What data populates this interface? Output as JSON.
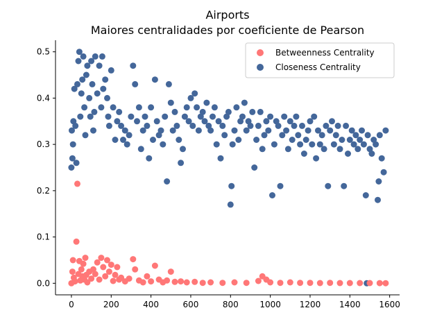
{
  "chart_data": {
    "type": "scatter",
    "title": "Airports",
    "subtitle": "Maiores centralidades por coeficiente de Pearson",
    "xlabel": "",
    "ylabel": "",
    "xlim": [
      -80,
      1650
    ],
    "ylim": [
      -0.025,
      0.525
    ],
    "x_ticks": [
      0,
      200,
      400,
      600,
      800,
      1000,
      1200,
      1400,
      1600
    ],
    "y_ticks": [
      0.0,
      0.1,
      0.2,
      0.3,
      0.4,
      0.5
    ],
    "y_tick_labels": [
      "0.0",
      "0.1",
      "0.2",
      "0.3",
      "0.4",
      "0.5"
    ],
    "grid": false,
    "legend_position": "top-right",
    "series": [
      {
        "name": "Betweenness Centrality",
        "color": "#ff7777",
        "points": [
          [
            0,
            0.0
          ],
          [
            5,
            0.025
          ],
          [
            8,
            0.05
          ],
          [
            12,
            0.012
          ],
          [
            18,
            0.004
          ],
          [
            25,
            0.09
          ],
          [
            30,
            0.215
          ],
          [
            35,
            0.02
          ],
          [
            40,
            0.048
          ],
          [
            45,
            0.006
          ],
          [
            50,
            0.03
          ],
          [
            55,
            0.015
          ],
          [
            60,
            0.042
          ],
          [
            65,
            0.008
          ],
          [
            70,
            0.055
          ],
          [
            75,
            0.018
          ],
          [
            80,
            0.002
          ],
          [
            90,
            0.025
          ],
          [
            100,
            0.01
          ],
          [
            110,
            0.03
          ],
          [
            120,
            0.02
          ],
          [
            130,
            0.045
          ],
          [
            140,
            0.008
          ],
          [
            150,
            0.055
          ],
          [
            160,
            0.035
          ],
          [
            170,
            0.015
          ],
          [
            180,
            0.05
          ],
          [
            190,
            0.025
          ],
          [
            200,
            0.04
          ],
          [
            210,
            0.005
          ],
          [
            220,
            0.018
          ],
          [
            230,
            0.035
          ],
          [
            240,
            0.008
          ],
          [
            250,
            0.012
          ],
          [
            270,
            0.004
          ],
          [
            290,
            0.01
          ],
          [
            310,
            0.052
          ],
          [
            320,
            0.03
          ],
          [
            340,
            0.006
          ],
          [
            360,
            0.002
          ],
          [
            380,
            0.015
          ],
          [
            400,
            0.004
          ],
          [
            420,
            0.038
          ],
          [
            440,
            0.008
          ],
          [
            460,
            0.002
          ],
          [
            480,
            0.006
          ],
          [
            500,
            0.025
          ],
          [
            520,
            0.003
          ],
          [
            550,
            0.004
          ],
          [
            580,
            0.002
          ],
          [
            620,
            0.003
          ],
          [
            660,
            0.001
          ],
          [
            700,
            0.002
          ],
          [
            760,
            0.001
          ],
          [
            820,
            0.002
          ],
          [
            880,
            0.001
          ],
          [
            940,
            0.005
          ],
          [
            960,
            0.015
          ],
          [
            980,
            0.008
          ],
          [
            1000,
            0.002
          ],
          [
            1050,
            0.001
          ],
          [
            1100,
            0.002
          ],
          [
            1150,
            0.001
          ],
          [
            1200,
            0.001
          ],
          [
            1250,
            0.0005
          ],
          [
            1300,
            0.001
          ],
          [
            1350,
            0.0005
          ],
          [
            1400,
            0.0005
          ],
          [
            1450,
            0.0005
          ],
          [
            1500,
            0.0005
          ],
          [
            1550,
            0.0003
          ],
          [
            1580,
            0.0002
          ]
        ]
      },
      {
        "name": "Closeness Centrality",
        "color": "#44679a",
        "points": [
          [
            0,
            0.25
          ],
          [
            2,
            0.33
          ],
          [
            5,
            0.27
          ],
          [
            8,
            0.3
          ],
          [
            10,
            0.35
          ],
          [
            15,
            0.42
          ],
          [
            20,
            0.34
          ],
          [
            25,
            0.26
          ],
          [
            30,
            0.43
          ],
          [
            35,
            0.48
          ],
          [
            40,
            0.5
          ],
          [
            45,
            0.36
          ],
          [
            50,
            0.41
          ],
          [
            55,
            0.44
          ],
          [
            60,
            0.49
          ],
          [
            65,
            0.38
          ],
          [
            70,
            0.32
          ],
          [
            75,
            0.45
          ],
          [
            80,
            0.47
          ],
          [
            90,
            0.4
          ],
          [
            95,
            0.36
          ],
          [
            100,
            0.48
          ],
          [
            105,
            0.43
          ],
          [
            110,
            0.33
          ],
          [
            115,
            0.37
          ],
          [
            120,
            0.49
          ],
          [
            130,
            0.41
          ],
          [
            140,
            0.47
          ],
          [
            150,
            0.38
          ],
          [
            155,
            0.49
          ],
          [
            160,
            0.42
          ],
          [
            170,
            0.44
          ],
          [
            180,
            0.4
          ],
          [
            185,
            0.36
          ],
          [
            190,
            0.34
          ],
          [
            200,
            0.46
          ],
          [
            210,
            0.38
          ],
          [
            220,
            0.31
          ],
          [
            230,
            0.35
          ],
          [
            240,
            0.37
          ],
          [
            250,
            0.34
          ],
          [
            260,
            0.31
          ],
          [
            270,
            0.33
          ],
          [
            280,
            0.3
          ],
          [
            290,
            0.32
          ],
          [
            300,
            0.36
          ],
          [
            310,
            0.47
          ],
          [
            320,
            0.43
          ],
          [
            330,
            0.35
          ],
          [
            340,
            0.38
          ],
          [
            350,
            0.29
          ],
          [
            360,
            0.33
          ],
          [
            370,
            0.36
          ],
          [
            380,
            0.34
          ],
          [
            390,
            0.27
          ],
          [
            400,
            0.38
          ],
          [
            410,
            0.31
          ],
          [
            420,
            0.44
          ],
          [
            430,
            0.35
          ],
          [
            440,
            0.32
          ],
          [
            450,
            0.33
          ],
          [
            460,
            0.3
          ],
          [
            470,
            0.36
          ],
          [
            480,
            0.22
          ],
          [
            490,
            0.43
          ],
          [
            500,
            0.39
          ],
          [
            510,
            0.33
          ],
          [
            520,
            0.37
          ],
          [
            530,
            0.34
          ],
          [
            540,
            0.31
          ],
          [
            550,
            0.26
          ],
          [
            560,
            0.29
          ],
          [
            570,
            0.36
          ],
          [
            580,
            0.38
          ],
          [
            590,
            0.35
          ],
          [
            600,
            0.4
          ],
          [
            610,
            0.34
          ],
          [
            620,
            0.41
          ],
          [
            630,
            0.38
          ],
          [
            640,
            0.33
          ],
          [
            650,
            0.36
          ],
          [
            660,
            0.37
          ],
          [
            670,
            0.35
          ],
          [
            680,
            0.39
          ],
          [
            690,
            0.34
          ],
          [
            700,
            0.33
          ],
          [
            710,
            0.36
          ],
          [
            720,
            0.38
          ],
          [
            730,
            0.3
          ],
          [
            740,
            0.35
          ],
          [
            750,
            0.27
          ],
          [
            760,
            0.34
          ],
          [
            770,
            0.32
          ],
          [
            780,
            0.36
          ],
          [
            790,
            0.37
          ],
          [
            800,
            0.17
          ],
          [
            805,
            0.21
          ],
          [
            810,
            0.3
          ],
          [
            820,
            0.33
          ],
          [
            830,
            0.38
          ],
          [
            840,
            0.31
          ],
          [
            850,
            0.35
          ],
          [
            860,
            0.36
          ],
          [
            870,
            0.39
          ],
          [
            880,
            0.33
          ],
          [
            890,
            0.35
          ],
          [
            900,
            0.34
          ],
          [
            910,
            0.37
          ],
          [
            920,
            0.25
          ],
          [
            930,
            0.31
          ],
          [
            940,
            0.34
          ],
          [
            950,
            0.37
          ],
          [
            960,
            0.29
          ],
          [
            970,
            0.32
          ],
          [
            980,
            0.35
          ],
          [
            990,
            0.33
          ],
          [
            1000,
            0.36
          ],
          [
            1010,
            0.19
          ],
          [
            1020,
            0.3
          ],
          [
            1030,
            0.35
          ],
          [
            1040,
            0.34
          ],
          [
            1050,
            0.21
          ],
          [
            1060,
            0.32
          ],
          [
            1070,
            0.36
          ],
          [
            1080,
            0.33
          ],
          [
            1090,
            0.29
          ],
          [
            1100,
            0.35
          ],
          [
            1110,
            0.31
          ],
          [
            1120,
            0.34
          ],
          [
            1130,
            0.36
          ],
          [
            1140,
            0.32
          ],
          [
            1150,
            0.3
          ],
          [
            1160,
            0.34
          ],
          [
            1170,
            0.28
          ],
          [
            1180,
            0.31
          ],
          [
            1190,
            0.33
          ],
          [
            1200,
            0.35
          ],
          [
            1210,
            0.3
          ],
          [
            1220,
            0.36
          ],
          [
            1230,
            0.27
          ],
          [
            1240,
            0.33
          ],
          [
            1250,
            0.3
          ],
          [
            1260,
            0.32
          ],
          [
            1270,
            0.29
          ],
          [
            1280,
            0.34
          ],
          [
            1290,
            0.21
          ],
          [
            1300,
            0.33
          ],
          [
            1310,
            0.35
          ],
          [
            1320,
            0.3
          ],
          [
            1330,
            0.32
          ],
          [
            1340,
            0.34
          ],
          [
            1350,
            0.29
          ],
          [
            1360,
            0.31
          ],
          [
            1370,
            0.21
          ],
          [
            1380,
            0.34
          ],
          [
            1390,
            0.28
          ],
          [
            1400,
            0.31
          ],
          [
            1410,
            0.33
          ],
          [
            1420,
            0.3
          ],
          [
            1430,
            0.32
          ],
          [
            1440,
            0.29
          ],
          [
            1450,
            0.31
          ],
          [
            1460,
            0.33
          ],
          [
            1470,
            0.3
          ],
          [
            1480,
            0.19
          ],
          [
            1485,
            0.0
          ],
          [
            1490,
            0.32
          ],
          [
            1500,
            0.29
          ],
          [
            1510,
            0.28
          ],
          [
            1520,
            0.31
          ],
          [
            1530,
            0.3
          ],
          [
            1540,
            0.18
          ],
          [
            1545,
            0.22
          ],
          [
            1550,
            0.32
          ],
          [
            1560,
            0.27
          ],
          [
            1570,
            0.24
          ],
          [
            1580,
            0.33
          ]
        ]
      }
    ]
  }
}
